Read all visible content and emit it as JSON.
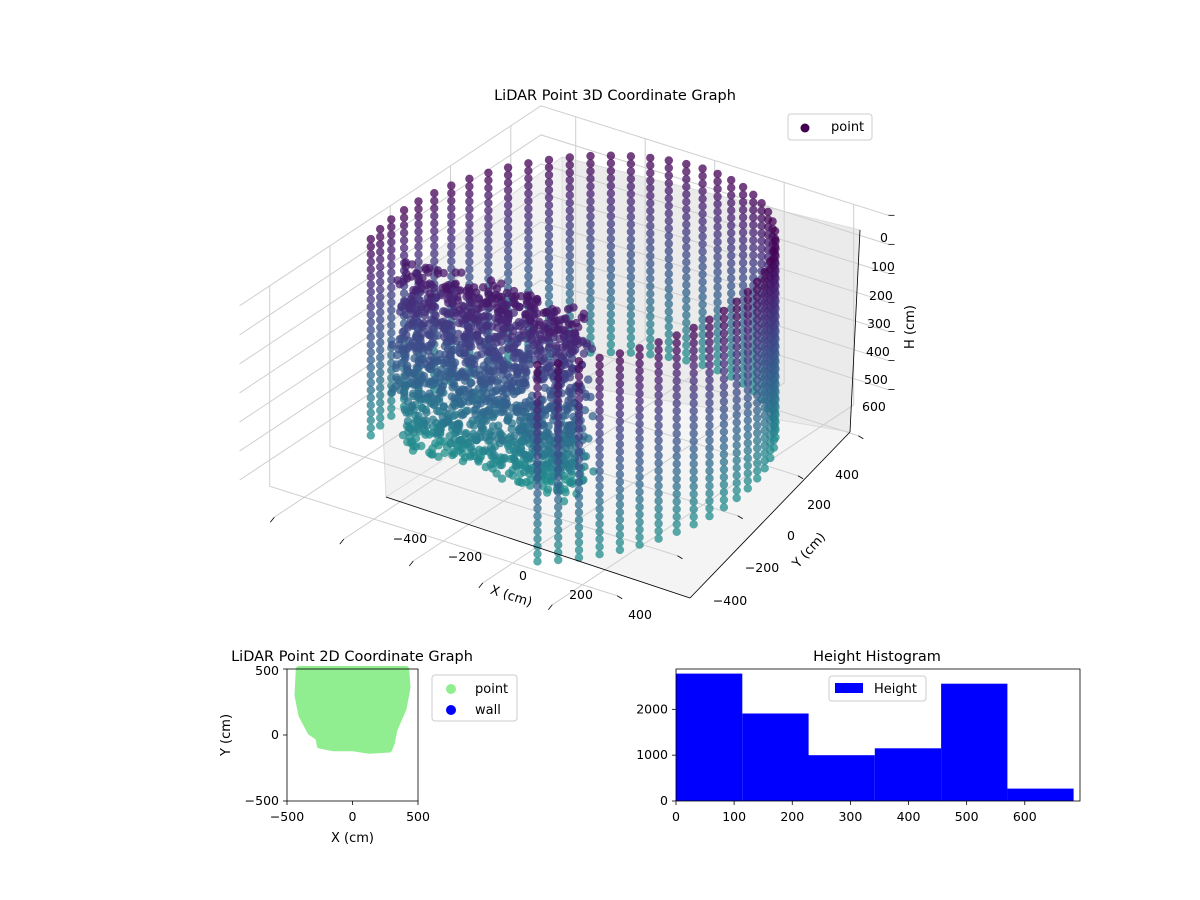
{
  "chart_data": [
    {
      "type": "scatter",
      "subtype": "3d",
      "title": "LiDAR Point 3D Coordinate Graph",
      "xlabel": "X (cm)",
      "ylabel": "Y (cm)",
      "zlabel": "H (cm)",
      "x_ticks": [
        "−400",
        "−200",
        "0",
        "200",
        "400"
      ],
      "y_ticks": [
        "−400",
        "−200",
        "0",
        "200",
        "400"
      ],
      "z_ticks": [
        "0",
        "100",
        "200",
        "300",
        "400",
        "500",
        "600"
      ],
      "xlim": [
        -500,
        500
      ],
      "ylim": [
        -500,
        500
      ],
      "zlim": [
        0,
        690
      ],
      "z_inverted": true,
      "grid": true,
      "colormap": "viridis (color by height)",
      "legend": {
        "placement": "top-right",
        "entries": [
          {
            "name": "point",
            "color": "#440154"
          }
        ]
      },
      "series": [
        {
          "name": "point",
          "description_of_shape": "ring of wall points, radius about 460 cm, heights 0 to 690 cm, plus a dense cluster near x -350..150, y -150..-60",
          "x_range": [
            -460,
            460
          ],
          "y_range": [
            -460,
            460
          ],
          "h_range": [
            0,
            690
          ]
        }
      ]
    },
    {
      "type": "scatter",
      "title": "LiDAR Point 2D Coordinate Graph",
      "xlabel": "X (cm)",
      "ylabel": "Y (cm)",
      "x_ticks": [
        "−500",
        "0",
        "500"
      ],
      "y_ticks": [
        "−500",
        "0",
        "500"
      ],
      "xlim": [
        -500,
        500
      ],
      "ylim": [
        -500,
        500
      ],
      "legend": {
        "placement": "outside-right",
        "entries": [
          {
            "name": "point",
            "color": "#90ee90"
          },
          {
            "name": "wall",
            "color": "#0000ff"
          }
        ]
      },
      "series": [
        {
          "name": "point",
          "color": "#90ee90",
          "region_outline": [
            [
              -410,
              500
            ],
            [
              -420,
              300
            ],
            [
              -390,
              150
            ],
            [
              -320,
              20
            ],
            [
              -260,
              -20
            ],
            [
              -250,
              -80
            ],
            [
              -150,
              -100
            ],
            [
              0,
              -100
            ],
            [
              130,
              -120
            ],
            [
              280,
              -110
            ],
            [
              300,
              -60
            ],
            [
              320,
              40
            ],
            [
              390,
              200
            ],
            [
              420,
              360
            ],
            [
              410,
              500
            ]
          ]
        },
        {
          "name": "wall",
          "color": "#0000ff",
          "points": []
        }
      ]
    },
    {
      "type": "bar",
      "subtype": "histogram",
      "title": "Height Histogram",
      "xlabel": "",
      "ylabel": "",
      "bin_edges": [
        0,
        114,
        228,
        342,
        456,
        570,
        684
      ],
      "values": [
        2780,
        1910,
        1000,
        1150,
        2560,
        270
      ],
      "color": "#0000ff",
      "x_ticks": [
        "0",
        "100",
        "200",
        "300",
        "400",
        "500",
        "600"
      ],
      "y_ticks": [
        "0",
        "1000",
        "2000"
      ],
      "xlim": [
        0,
        695
      ],
      "ylim": [
        0,
        2880
      ],
      "legend": {
        "placement": "top-center",
        "entries": [
          {
            "name": "Height",
            "color": "#0000ff"
          }
        ]
      }
    }
  ]
}
